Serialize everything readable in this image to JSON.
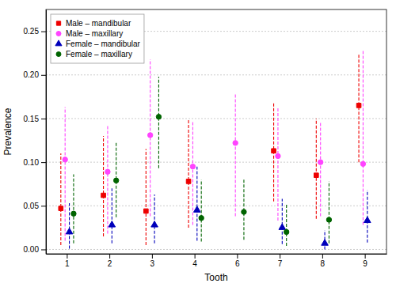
{
  "chart_data": {
    "type": "scatter",
    "xlabel": "Tooth",
    "ylabel": "Prevalence",
    "categories": [
      "1",
      "2",
      "3",
      "4",
      "6",
      "7",
      "8",
      "9"
    ],
    "series": [
      {
        "name": "Male – mandibular",
        "color": "#EE0000",
        "marker": "square",
        "values": [
          0.047,
          0.062,
          0.044,
          0.078,
          null,
          0.113,
          0.085,
          0.165
        ],
        "ci_low": [
          0.005,
          0.015,
          0.005,
          0.025,
          null,
          0.055,
          0.035,
          0.1
        ],
        "ci_high": [
          0.11,
          0.13,
          0.115,
          0.15,
          null,
          0.168,
          0.15,
          0.225
        ]
      },
      {
        "name": "Male – maxillary",
        "color": "#FF44FF",
        "marker": "circle",
        "values": [
          0.103,
          0.089,
          0.131,
          0.095,
          0.122,
          0.107,
          0.1,
          0.098
        ],
        "ci_low": [
          0.01,
          0.018,
          0.038,
          0.028,
          0.038,
          0.033,
          0.038,
          0.028
        ],
        "ci_high": [
          0.163,
          0.143,
          0.218,
          0.146,
          0.178,
          0.162,
          0.146,
          0.228
        ]
      },
      {
        "name": "Female – mandibular",
        "color": "#0000BB",
        "marker": "triangle",
        "values": [
          0.02,
          0.028,
          0.028,
          0.045,
          null,
          0.025,
          0.007,
          0.033
        ],
        "ci_low": [
          0.001,
          0.007,
          0.007,
          0.01,
          null,
          0.006,
          0.0,
          0.008
        ],
        "ci_high": [
          0.053,
          0.07,
          0.063,
          0.095,
          null,
          0.058,
          0.022,
          0.068
        ]
      },
      {
        "name": "Female – maxillary",
        "color": "#006400",
        "marker": "circle",
        "values": [
          0.041,
          0.079,
          0.152,
          0.036,
          0.043,
          0.02,
          0.034,
          null
        ],
        "ci_low": [
          0.007,
          0.037,
          0.093,
          0.009,
          0.011,
          0.004,
          0.007,
          null
        ],
        "ci_high": [
          0.086,
          0.124,
          0.198,
          0.08,
          0.08,
          0.053,
          0.078,
          null
        ]
      }
    ],
    "ylim": [
      -0.005,
      0.275
    ],
    "yticks": [
      {
        "value": 0.0,
        "label": "0.00"
      },
      0.05,
      {
        "value": 0.1,
        "label": "0.10"
      },
      0.15,
      {
        "value": 0.2,
        "label": "0.20"
      },
      0.25
    ],
    "grid": true,
    "legend": "upper left"
  }
}
